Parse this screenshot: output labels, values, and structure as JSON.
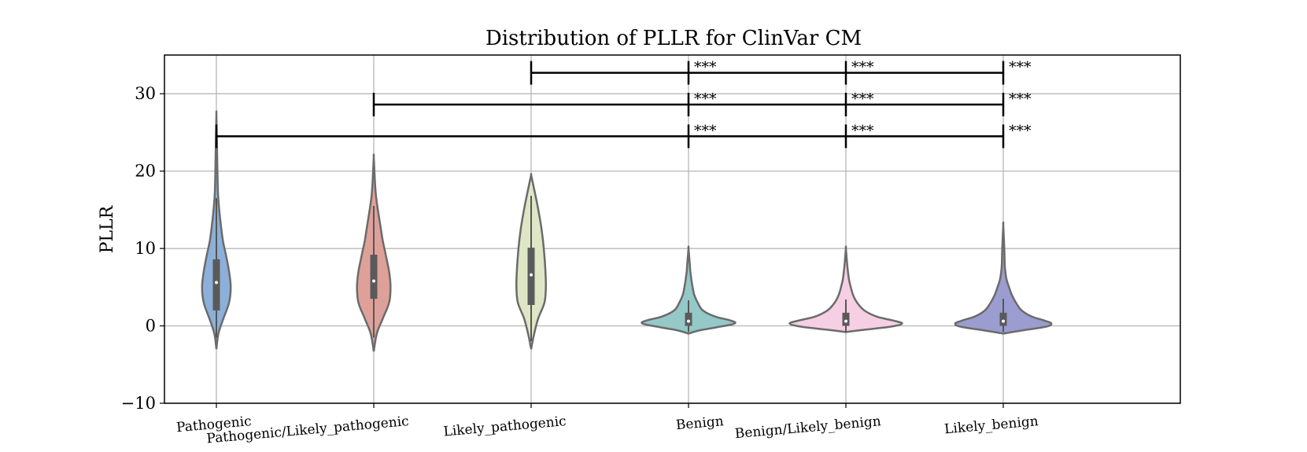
{
  "chart_data": {
    "type": "violin",
    "title": "Distribution of PLLR for ClinVar CM",
    "xlabel": "",
    "ylabel": "PLLR",
    "ylim": [
      -10,
      35
    ],
    "yticks": [
      -10,
      0,
      10,
      20,
      30
    ],
    "ytick_labels": [
      "−10",
      "0",
      "10",
      "20",
      "30"
    ],
    "grid": true,
    "categories": [
      "Pathogenic",
      "Pathogenic/Likely_pathogenic",
      "Likely_pathogenic",
      "Benign",
      "Benign/Likely_benign",
      "Likely_benign"
    ],
    "colors": [
      "#8cb0d9",
      "#dea19a",
      "#dfe6c5",
      "#94c9c8",
      "#f6cfe5",
      "#9b9dd0"
    ],
    "outline_color": "#6b6b6b",
    "distributions": [
      {
        "name": "Pathogenic",
        "min": -3,
        "max": 27.2,
        "q1": 2,
        "median": 5.6,
        "q3": 8.6,
        "whisker_low": -1.5,
        "whisker_high": 16.5,
        "profile": [
          [
            -3,
            0
          ],
          [
            -1,
            0.1
          ],
          [
            1,
            0.35
          ],
          [
            3,
            0.62
          ],
          [
            5,
            0.7
          ],
          [
            7,
            0.62
          ],
          [
            9,
            0.48
          ],
          [
            11,
            0.32
          ],
          [
            13,
            0.22
          ],
          [
            15,
            0.14
          ],
          [
            17,
            0.08
          ],
          [
            20,
            0.05
          ],
          [
            23,
            0.03
          ],
          [
            27.2,
            0
          ]
        ]
      },
      {
        "name": "Pathogenic/Likely_pathogenic",
        "min": -3.3,
        "max": 21.8,
        "q1": 3.5,
        "median": 5.8,
        "q3": 9.2,
        "whisker_low": -1.5,
        "whisker_high": 15.5,
        "profile": [
          [
            -3.3,
            0
          ],
          [
            -1,
            0.15
          ],
          [
            1,
            0.45
          ],
          [
            3,
            0.75
          ],
          [
            5,
            0.82
          ],
          [
            7,
            0.75
          ],
          [
            9,
            0.6
          ],
          [
            11,
            0.44
          ],
          [
            13,
            0.32
          ],
          [
            15,
            0.2
          ],
          [
            17,
            0.1
          ],
          [
            19,
            0.05
          ],
          [
            21.8,
            0
          ]
        ]
      },
      {
        "name": "Likely_pathogenic",
        "min": -3,
        "max": 19.5,
        "q1": 2.7,
        "median": 6.6,
        "q3": 10.1,
        "whisker_low": -2,
        "whisker_high": 16.8,
        "profile": [
          [
            -3,
            0
          ],
          [
            -1,
            0.15
          ],
          [
            1,
            0.35
          ],
          [
            3,
            0.65
          ],
          [
            5,
            0.72
          ],
          [
            7,
            0.7
          ],
          [
            9,
            0.65
          ],
          [
            11,
            0.58
          ],
          [
            13,
            0.48
          ],
          [
            15,
            0.35
          ],
          [
            17,
            0.2
          ],
          [
            18.5,
            0.08
          ],
          [
            19.5,
            0
          ]
        ]
      },
      {
        "name": "Benign",
        "min": -1,
        "max": 10,
        "q1": 0,
        "median": 0.6,
        "q3": 1.7,
        "whisker_low": -0.8,
        "whisker_high": 3.3,
        "profile": [
          [
            -1,
            0
          ],
          [
            -0.6,
            0.5
          ],
          [
            -0.2,
            1.35
          ],
          [
            0.3,
            2.25
          ],
          [
            0.7,
            2.05
          ],
          [
            1.2,
            1.3
          ],
          [
            2,
            0.7
          ],
          [
            3,
            0.45
          ],
          [
            4,
            0.28
          ],
          [
            5,
            0.2
          ],
          [
            6,
            0.14
          ],
          [
            7,
            0.09
          ],
          [
            8,
            0.06
          ],
          [
            10,
            0
          ]
        ]
      },
      {
        "name": "Benign/Likely_benign",
        "min": -0.8,
        "max": 10,
        "q1": 0,
        "median": 0.6,
        "q3": 1.7,
        "whisker_low": -0.8,
        "whisker_high": 3.4,
        "profile": [
          [
            -0.8,
            0
          ],
          [
            -0.5,
            0.9
          ],
          [
            -0.1,
            2.2
          ],
          [
            0.3,
            2.75
          ],
          [
            0.7,
            2.3
          ],
          [
            1.2,
            1.5
          ],
          [
            2,
            0.9
          ],
          [
            3,
            0.55
          ],
          [
            4,
            0.35
          ],
          [
            5,
            0.24
          ],
          [
            6,
            0.15
          ],
          [
            7,
            0.1
          ],
          [
            8,
            0.06
          ],
          [
            10,
            0
          ]
        ]
      },
      {
        "name": "Likely_benign",
        "min": -1,
        "max": 13,
        "q1": 0,
        "median": 0.6,
        "q3": 1.7,
        "whisker_low": -0.8,
        "whisker_high": 3.5,
        "profile": [
          [
            -1,
            0
          ],
          [
            -0.6,
            0.9
          ],
          [
            -0.1,
            2.1
          ],
          [
            0.3,
            2.35
          ],
          [
            0.7,
            2
          ],
          [
            1.2,
            1.4
          ],
          [
            2,
            0.9
          ],
          [
            3,
            0.62
          ],
          [
            4,
            0.42
          ],
          [
            5,
            0.28
          ],
          [
            6,
            0.16
          ],
          [
            7,
            0.1
          ],
          [
            8,
            0.07
          ],
          [
            10,
            0.05
          ],
          [
            13,
            0
          ]
        ]
      }
    ],
    "significance_brackets": [
      {
        "from": "Likely_pathogenic",
        "to": [
          "Benign",
          "Benign/Likely_benign",
          "Likely_benign"
        ],
        "label": "***"
      },
      {
        "from": "Pathogenic/Likely_pathogenic",
        "to": [
          "Benign",
          "Benign/Likely_benign",
          "Likely_benign"
        ],
        "label": "***"
      },
      {
        "from": "Pathogenic",
        "to": [
          "Benign",
          "Benign/Likely_benign",
          "Likely_benign"
        ],
        "label": "***"
      }
    ]
  }
}
